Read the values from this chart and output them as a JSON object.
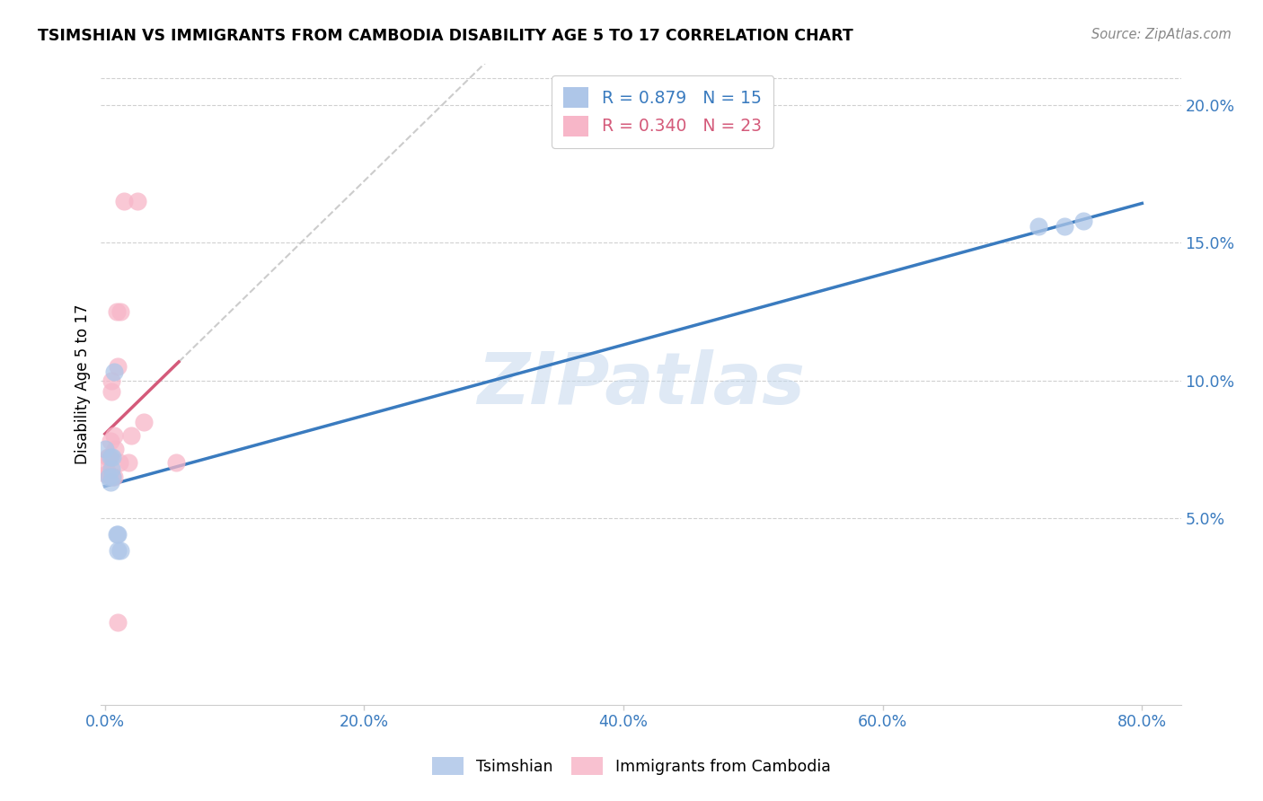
{
  "title": "TSIMSHIAN VS IMMIGRANTS FROM CAMBODIA DISABILITY AGE 5 TO 17 CORRELATION CHART",
  "source": "Source: ZipAtlas.com",
  "ylabel_label": "Disability Age 5 to 17",
  "legend_label1": "Tsimshian",
  "legend_label2": "Immigrants from Cambodia",
  "r1": 0.879,
  "n1": 15,
  "r2": 0.34,
  "n2": 23,
  "xlim_min": -0.003,
  "xlim_max": 0.83,
  "ylim_min": -0.018,
  "ylim_max": 0.215,
  "xticks": [
    0.0,
    0.2,
    0.4,
    0.6,
    0.8
  ],
  "yticks": [
    0.05,
    0.1,
    0.15,
    0.2
  ],
  "xticklabels": [
    "0.0%",
    "20.0%",
    "40.0%",
    "60.0%",
    "80.0%"
  ],
  "yticklabels": [
    "5.0%",
    "10.0%",
    "15.0%",
    "20.0%"
  ],
  "watermark": "ZIPatlas",
  "color_blue": "#aec6e8",
  "color_pink": "#f7b6c8",
  "line_blue": "#3a7bbf",
  "line_pink": "#d45a7a",
  "tick_color": "#3a7bbf",
  "tsimshian_x": [
    0.0,
    0.003,
    0.004,
    0.004,
    0.005,
    0.006,
    0.006,
    0.007,
    0.009,
    0.01,
    0.01,
    0.012,
    0.72,
    0.74,
    0.755
  ],
  "tsimshian_y": [
    0.075,
    0.065,
    0.072,
    0.063,
    0.068,
    0.065,
    0.072,
    0.103,
    0.044,
    0.044,
    0.038,
    0.038,
    0.156,
    0.156,
    0.158
  ],
  "cambodia_x": [
    0.001,
    0.001,
    0.002,
    0.003,
    0.003,
    0.004,
    0.005,
    0.005,
    0.006,
    0.007,
    0.007,
    0.008,
    0.009,
    0.01,
    0.011,
    0.012,
    0.015,
    0.018,
    0.02,
    0.025,
    0.03,
    0.055,
    0.01
  ],
  "cambodia_y": [
    0.066,
    0.068,
    0.072,
    0.066,
    0.072,
    0.078,
    0.1,
    0.096,
    0.065,
    0.065,
    0.08,
    0.075,
    0.125,
    0.105,
    0.07,
    0.125,
    0.165,
    0.07,
    0.08,
    0.165,
    0.085,
    0.07,
    0.012
  ],
  "camb_line_x_end": 0.057,
  "blue_line_intercept": 0.044,
  "blue_line_slope": 0.144
}
